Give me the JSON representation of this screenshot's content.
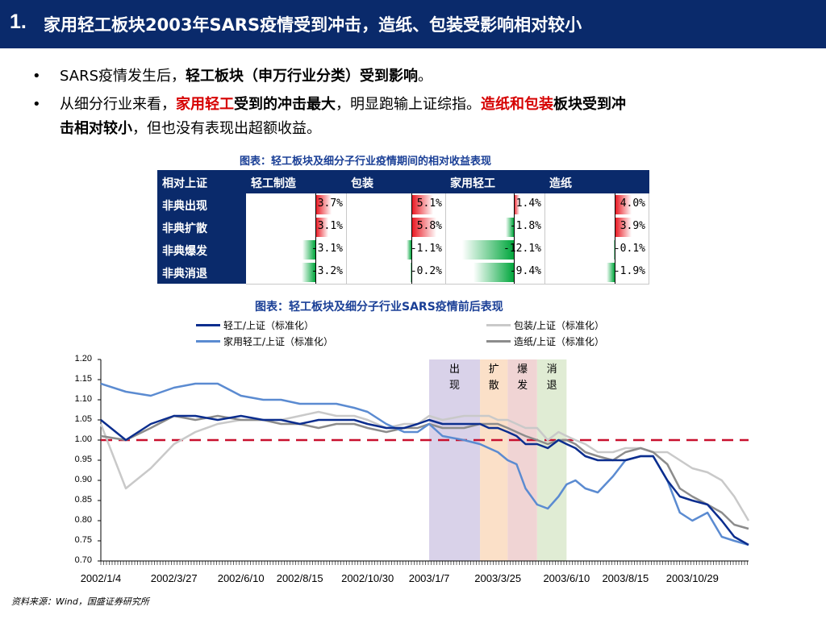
{
  "title": {
    "number": "1.",
    "text": "家用轻工板块2003年SARS疫情受到冲击，造纸、包装受影响相对较小"
  },
  "bullets": [
    {
      "marker": "•",
      "parts": [
        "SARS疫情发生后，",
        "轻工板块（申万行业分类）受到影响",
        "。"
      ]
    },
    {
      "marker": "•",
      "parts": [
        "从细分行业来看，",
        "家用轻工",
        "受到的冲击最大",
        "，明显跑输上证综指。",
        "造纸和包装",
        "板块受到冲",
        "击相对较小",
        "，但也没有表现出超额收益。"
      ]
    }
  ],
  "table": {
    "caption": "图表：轻工板块及细分子行业疫情期间的相对收益表现",
    "corner": "相对上证",
    "columns": [
      "轻工制造",
      "包装",
      "家用轻工",
      "造纸"
    ],
    "rows": [
      {
        "label": "非典出现",
        "values": [
          "3.7%",
          "5.1%",
          "1.4%",
          "4.0%"
        ],
        "numbers": [
          3.7,
          5.1,
          1.4,
          4.0
        ]
      },
      {
        "label": "非典扩散",
        "values": [
          "3.1%",
          "5.8%",
          "-1.8%",
          "3.9%"
        ],
        "numbers": [
          3.1,
          5.8,
          -1.8,
          3.9
        ]
      },
      {
        "label": "非典爆发",
        "values": [
          "-3.1%",
          "-1.1%",
          "-12.1%",
          "-0.1%"
        ],
        "numbers": [
          -3.1,
          -1.1,
          -12.1,
          -0.1
        ]
      },
      {
        "label": "非典消退",
        "values": [
          "-3.2%",
          "-0.2%",
          "-9.4%",
          "-1.9%"
        ],
        "numbers": [
          -3.2,
          -0.2,
          -9.4,
          -1.9
        ]
      }
    ]
  },
  "chart_data": {
    "type": "line",
    "title": "图表：轻工板块及细分子行业SARS疫情前后表现",
    "ylim": [
      0.7,
      1.2
    ],
    "yticks": [
      "1.20",
      "1.15",
      "1.10",
      "1.05",
      "1.00",
      "0.95",
      "0.90",
      "0.85",
      "0.80",
      "0.75",
      "0.70"
    ],
    "xtick_labels": [
      "2002/1/4",
      "2002/3/27",
      "2002/6/10",
      "2002/8/15",
      "2002/10/30",
      "2003/1/7",
      "2003/3/25",
      "2003/6/10",
      "2003/8/15",
      "2003/10/29"
    ],
    "x": [
      "2002/1/4",
      "2002/2/1",
      "2002/3/1",
      "2002/3/27",
      "2002/4/20",
      "2002/5/15",
      "2002/6/10",
      "2002/7/5",
      "2002/7/25",
      "2002/8/15",
      "2002/9/5",
      "2002/9/25",
      "2002/10/15",
      "2002/10/30",
      "2002/11/20",
      "2002/12/10",
      "2002/12/25",
      "2003/1/7",
      "2003/1/22",
      "2003/2/15",
      "2003/3/5",
      "2003/3/15",
      "2003/3/25",
      "2003/4/5",
      "2003/4/15",
      "2003/4/25",
      "2003/5/8",
      "2003/5/20",
      "2003/6/1",
      "2003/6/10",
      "2003/6/20",
      "2003/7/1",
      "2003/7/15",
      "2003/8/1",
      "2003/8/15",
      "2003/9/1",
      "2003/9/15",
      "2003/10/1",
      "2003/10/15",
      "2003/10/29",
      "2003/11/15",
      "2003/12/1",
      "2003/12/15",
      "2003/12/31"
    ],
    "series": [
      {
        "name": "轻工/上证（标准化）",
        "color": "#0b2d8e",
        "width": 2.5,
        "values": [
          1.05,
          1.0,
          1.04,
          1.06,
          1.06,
          1.05,
          1.06,
          1.05,
          1.05,
          1.04,
          1.05,
          1.05,
          1.05,
          1.04,
          1.03,
          1.03,
          1.04,
          1.05,
          1.04,
          1.04,
          1.04,
          1.03,
          1.03,
          1.02,
          1.01,
          0.99,
          0.99,
          0.98,
          1.0,
          0.99,
          0.98,
          0.96,
          0.95,
          0.95,
          0.95,
          0.96,
          0.96,
          0.9,
          0.86,
          0.85,
          0.84,
          0.8,
          0.76,
          0.74
        ]
      },
      {
        "name": "家用轻工/上证（标准化）",
        "color": "#5b8bd1",
        "width": 2.5,
        "values": [
          1.14,
          1.12,
          1.11,
          1.13,
          1.14,
          1.14,
          1.11,
          1.1,
          1.1,
          1.09,
          1.09,
          1.09,
          1.08,
          1.07,
          1.04,
          1.02,
          1.02,
          1.04,
          1.01,
          1.0,
          0.99,
          0.98,
          0.97,
          0.95,
          0.94,
          0.88,
          0.84,
          0.83,
          0.86,
          0.89,
          0.9,
          0.88,
          0.87,
          0.91,
          0.95,
          0.96,
          0.96,
          0.9,
          0.82,
          0.8,
          0.82,
          0.76,
          0.75,
          0.74
        ]
      },
      {
        "name": "包装/上证（标准化）",
        "color": "#c9c9c9",
        "width": 2.5,
        "values": [
          1.04,
          0.88,
          0.93,
          0.99,
          1.02,
          1.04,
          1.05,
          1.05,
          1.05,
          1.06,
          1.07,
          1.06,
          1.06,
          1.05,
          1.03,
          1.04,
          1.04,
          1.06,
          1.05,
          1.06,
          1.06,
          1.06,
          1.05,
          1.05,
          1.04,
          1.03,
          1.03,
          1.0,
          1.02,
          1.01,
          1.0,
          0.99,
          0.97,
          0.97,
          0.98,
          0.98,
          0.97,
          0.97,
          0.95,
          0.93,
          0.92,
          0.9,
          0.86,
          0.8
        ]
      },
      {
        "name": "造纸/上证（标准化）",
        "color": "#8c8c8c",
        "width": 2.5,
        "values": [
          1.01,
          1.0,
          1.03,
          1.06,
          1.05,
          1.06,
          1.05,
          1.05,
          1.04,
          1.04,
          1.03,
          1.04,
          1.04,
          1.03,
          1.02,
          1.03,
          1.03,
          1.04,
          1.03,
          1.03,
          1.04,
          1.04,
          1.04,
          1.03,
          1.02,
          1.01,
          1.0,
          0.99,
          1.0,
          1.0,
          0.99,
          0.97,
          0.96,
          0.95,
          0.97,
          0.98,
          0.97,
          0.94,
          0.88,
          0.86,
          0.84,
          0.82,
          0.79,
          0.78
        ]
      }
    ],
    "reference_line": {
      "value": 1.0,
      "color": "#c8102e",
      "style": "dashed"
    },
    "periods": [
      {
        "label": "出现",
        "start": "2003/1/7",
        "end": "2003/3/5",
        "color": "#d9d2e9"
      },
      {
        "label": "扩散",
        "start": "2003/3/5",
        "end": "2003/4/5",
        "color": "#fbe0c8"
      },
      {
        "label": "爆发",
        "start": "2003/4/5",
        "end": "2003/5/8",
        "color": "#f0d4d4"
      },
      {
        "label": "消退",
        "start": "2003/5/8",
        "end": "2003/6/10",
        "color": "#e0ecd4"
      }
    ],
    "legend_position": "top"
  },
  "source": "资料来源：Wind，国盛证券研究所"
}
